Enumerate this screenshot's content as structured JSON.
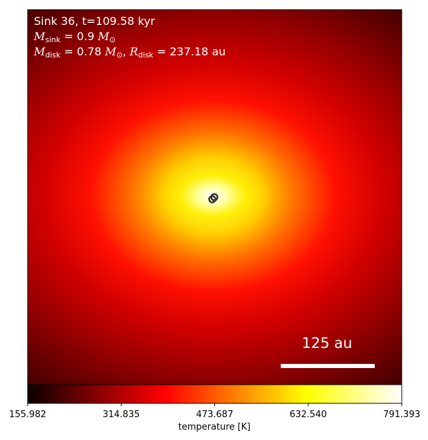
{
  "chart_data": {
    "type": "heatmap",
    "title_lines": {
      "line1": "Sink 36, t=109.58 kyr",
      "line2_symbol": "M",
      "line2_sub": "sink",
      "line2_rest": " = 0.9 ",
      "line2_unit": "M",
      "line2_unit_sub": "⊙",
      "line3_symbol": "M",
      "line3_sub": "disk",
      "line3_mid": " = 0.78 ",
      "line3_unit": "M",
      "line3_unit_sub": "⊙",
      "line3_sep": ", ",
      "line3_symbol2": "R",
      "line3_sub2": "disk",
      "line3_rest": " = 237.18 au"
    },
    "scale_bar_label": "125 au",
    "colorbar": {
      "label": "temperature [K]",
      "ticks": [
        "155.982",
        "314.835",
        "473.687",
        "632.540",
        "791.393"
      ],
      "tick_values": [
        155.982,
        314.835,
        473.687,
        632.54,
        791.393
      ],
      "colormap": "hot",
      "range": [
        155.982,
        791.393
      ]
    },
    "colors": {
      "low": "#0b0000",
      "mid_low": "#ff0000",
      "mid_high": "#ffff00",
      "high": "#ffffff"
    }
  }
}
